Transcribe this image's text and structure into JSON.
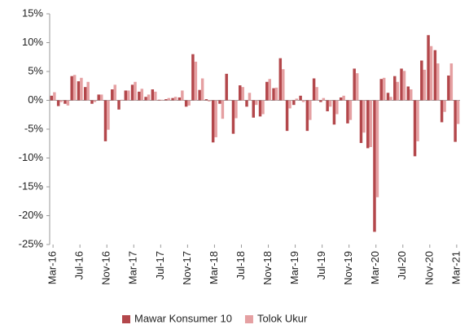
{
  "chart_data": {
    "type": "bar",
    "categories": [
      "Mar-16",
      null,
      null,
      null,
      "Jul-16",
      null,
      null,
      null,
      "Nov-16",
      null,
      null,
      null,
      "Mar-17",
      null,
      null,
      null,
      "Jul-17",
      null,
      null,
      null,
      "Nov-17",
      null,
      null,
      null,
      "Mar-18",
      null,
      null,
      null,
      "Jul-18",
      null,
      null,
      null,
      "Nov-18",
      null,
      null,
      null,
      "Mar-19",
      null,
      null,
      null,
      "Jul-19",
      null,
      null,
      null,
      "Nov-19",
      null,
      null,
      null,
      "Mar-20",
      null,
      null,
      null,
      "Jul-20",
      null,
      null,
      null,
      "Nov-20",
      null,
      null,
      null,
      "Mar-21"
    ],
    "series": [
      {
        "name": "Mawar Konsumer 10",
        "color": "#b3474b",
        "values": [
          0.8,
          -1.0,
          -0.6,
          4.2,
          3.3,
          2.3,
          -0.6,
          1.0,
          -7.1,
          1.9,
          -1.6,
          1.7,
          2.7,
          1.5,
          0.6,
          1.9,
          0.1,
          0.2,
          0.4,
          0.5,
          -1.1,
          8.0,
          1.8,
          0.2,
          -7.3,
          -0.6,
          4.6,
          -5.8,
          2.6,
          -1.1,
          -3.0,
          -2.8,
          3.2,
          2.1,
          7.3,
          -5.3,
          -0.8,
          0.8,
          -5.3,
          3.8,
          -0.3,
          -1.9,
          -4.2,
          0.5,
          -4.0,
          5.5,
          -7.4,
          -8.3,
          -22.8,
          3.7,
          1.3,
          4.2,
          5.5,
          2.4,
          -9.7,
          6.9,
          11.3,
          8.7,
          -3.8,
          4.3,
          -7.2
        ]
      },
      {
        "name": "Tolok Ukur",
        "color": "#e5a0a2",
        "values": [
          1.4,
          -0.3,
          -0.9,
          4.4,
          3.9,
          3.2,
          -0.3,
          1.0,
          -5.1,
          2.7,
          0.1,
          1.7,
          3.2,
          2.0,
          1.0,
          1.5,
          0.1,
          0.4,
          0.6,
          1.7,
          -0.9,
          6.7,
          3.8,
          -0.2,
          -6.4,
          -3.2,
          0.1,
          -3.1,
          2.3,
          1.3,
          -0.8,
          -2.4,
          3.7,
          2.2,
          5.4,
          -1.4,
          0.3,
          -0.3,
          -3.4,
          2.3,
          0.4,
          -1.1,
          -2.4,
          0.8,
          -3.4,
          4.7,
          -5.6,
          -8.1,
          -16.8,
          3.9,
          0.6,
          3.2,
          5.1,
          1.9,
          -7.1,
          5.3,
          9.4,
          6.4,
          -2.0,
          6.4,
          -4.1
        ]
      }
    ],
    "ylim": [
      -25,
      15
    ],
    "yticks": [
      {
        "value": -25,
        "label": "-25%"
      },
      {
        "value": -20,
        "label": "-20%"
      },
      {
        "value": -15,
        "label": "-15%"
      },
      {
        "value": -10,
        "label": "-10%"
      },
      {
        "value": -5,
        "label": "-5%"
      },
      {
        "value": 0,
        "label": "0%"
      },
      {
        "value": 5,
        "label": "5%"
      },
      {
        "value": 10,
        "label": "10%"
      },
      {
        "value": 15,
        "label": "15%"
      }
    ],
    "grid": false,
    "legend": "bottom"
  }
}
